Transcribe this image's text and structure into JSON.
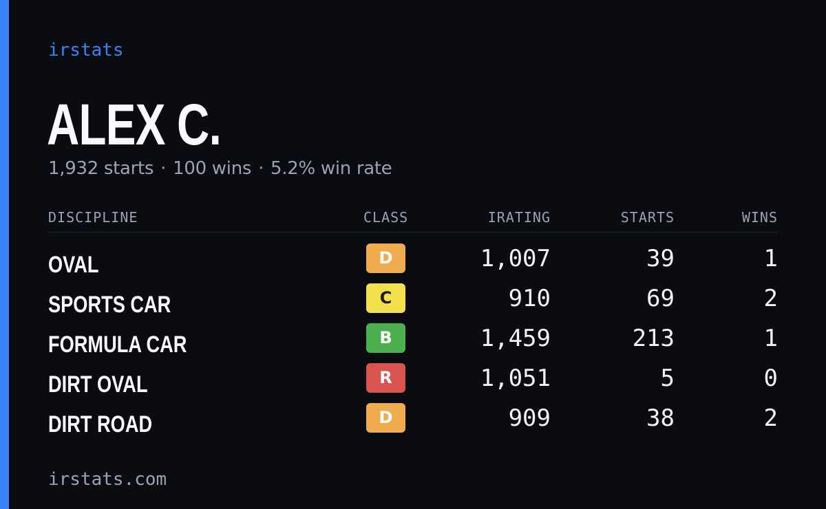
{
  "brand": "irstats",
  "player": {
    "name": "ALEX C.",
    "starts": "1,932 starts",
    "wins": "100 wins",
    "win_rate": "5.2% win rate",
    "separator": "·"
  },
  "table": {
    "headers": {
      "discipline": "DISCIPLINE",
      "class": "CLASS",
      "irating": "IRATING",
      "starts": "STARTS",
      "wins": "WINS"
    },
    "rows": [
      {
        "discipline": "OVAL",
        "class": "D",
        "class_color": "#f0ad4e",
        "class_text_color": "#ffffff",
        "irating": "1,007",
        "starts": "39",
        "wins": "1"
      },
      {
        "discipline": "SPORTS CAR",
        "class": "C",
        "class_color": "#f2e14c",
        "class_text_color": "#1a1a1a",
        "irating": "910",
        "starts": "69",
        "wins": "2"
      },
      {
        "discipline": "FORMULA CAR",
        "class": "B",
        "class_color": "#4caf50",
        "class_text_color": "#ffffff",
        "irating": "1,459",
        "starts": "213",
        "wins": "1"
      },
      {
        "discipline": "DIRT OVAL",
        "class": "R",
        "class_color": "#d9534f",
        "class_text_color": "#ffffff",
        "irating": "1,051",
        "starts": "5",
        "wins": "0"
      },
      {
        "discipline": "DIRT ROAD",
        "class": "D",
        "class_color": "#f0ad4e",
        "class_text_color": "#ffffff",
        "irating": "909",
        "starts": "38",
        "wins": "2"
      }
    ]
  },
  "footer": "irstats.com",
  "colors": {
    "accent": "#3b82f6",
    "background": "#0a0c12",
    "muted": "#9ca3af"
  }
}
